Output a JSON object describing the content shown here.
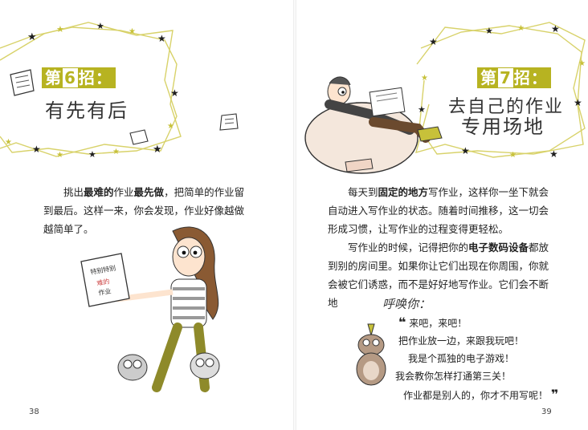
{
  "left_page": {
    "badge": {
      "prefix": "第",
      "number": "6",
      "suffix": "招："
    },
    "subtitle": "有先有后",
    "paragraph": {
      "pre": "挑出",
      "bold1": "最难的",
      "mid1": "作业",
      "bold2": "最先做",
      "post": "，把简单的作业留到最后。这样一来，你会发现，作业好像越做越简单了。"
    },
    "sign_text": [
      "特别特别",
      "难的",
      "作业"
    ],
    "page_number": "38"
  },
  "right_page": {
    "badge": {
      "prefix": "第",
      "number": "7",
      "suffix": "招："
    },
    "subtitle_line1": "去自己的作业",
    "subtitle_line2": "专用场地",
    "paragraph1": {
      "pre": "每天到",
      "bold": "固定的地方",
      "post": "写作业，这样你一坐下就会自动进入写作业的状态。随着时间推移，这一切会形成习惯，让写作业的过程变得更轻松。"
    },
    "paragraph2": {
      "pre": "写作业的时候，记得把你的",
      "bold": "电子数码设备",
      "post": "都放到别的房间里。如果你让它们出现在你周围，你就会被它们诱惑，而不是好好地写作业。它们会不断地"
    },
    "shout": "呼唤你：",
    "speech": [
      "来吧，来吧！",
      "把作业放一边，来跟我玩吧！",
      "我是个孤独的电子游戏！",
      "我会教你怎样打通第三关！",
      "作业都是别人的，你才不用写呢！"
    ],
    "page_number": "39"
  },
  "colors": {
    "accent": "#b7b321",
    "frame_line": "#d8d26a",
    "star": "#1f1f1f"
  }
}
